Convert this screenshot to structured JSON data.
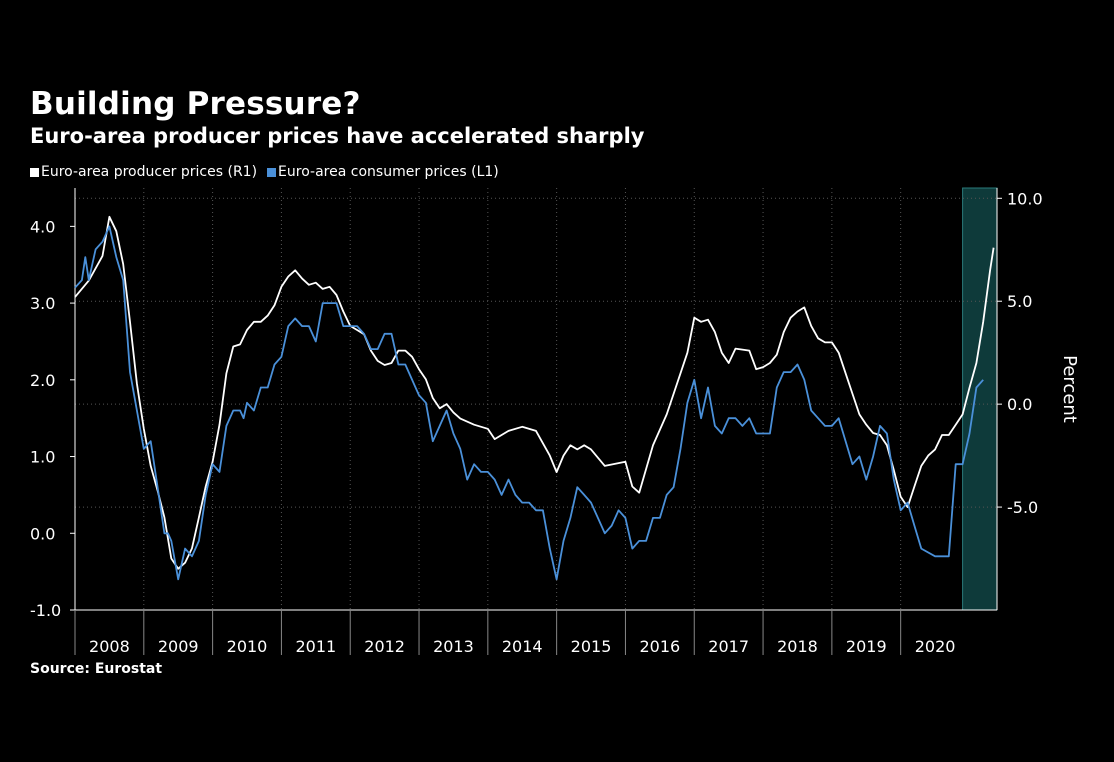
{
  "chart_data": {
    "type": "line",
    "title": "Building Pressure?",
    "subtitle": "Euro-area producer prices have accelerated sharply",
    "source": "Source: Eurostat",
    "right_axis_label": "Percent",
    "legend_position": "top-left",
    "left_axis": {
      "range": [
        -1.0,
        4.5
      ],
      "ticks": [
        "4.0",
        "3.0",
        "2.0",
        "1.0",
        "0.0",
        "-1.0"
      ]
    },
    "right_axis": {
      "range": [
        -10.0,
        10.5
      ],
      "ticks": [
        "10.0",
        "5.0",
        "0.0",
        "-5.0"
      ]
    },
    "x_range": [
      2008.0,
      2021.4
    ],
    "x_categories": [
      "2008",
      "2009",
      "2010",
      "2011",
      "2012",
      "2013",
      "2014",
      "2015",
      "2016",
      "2017",
      "2018",
      "2019",
      "2020"
    ],
    "highlight_region": [
      2020.9,
      2021.4
    ],
    "series": [
      {
        "name": "Euro-area producer prices (R1)",
        "axis": "right",
        "color": "#ffffff",
        "points": [
          [
            2008.0,
            5.2
          ],
          [
            2008.2,
            6.0
          ],
          [
            2008.4,
            7.2
          ],
          [
            2008.5,
            9.1
          ],
          [
            2008.6,
            8.4
          ],
          [
            2008.7,
            6.8
          ],
          [
            2008.8,
            4.0
          ],
          [
            2008.9,
            1.0
          ],
          [
            2009.0,
            -1.2
          ],
          [
            2009.1,
            -3.0
          ],
          [
            2009.2,
            -4.2
          ],
          [
            2009.3,
            -5.5
          ],
          [
            2009.4,
            -7.5
          ],
          [
            2009.5,
            -8.0
          ],
          [
            2009.6,
            -7.7
          ],
          [
            2009.7,
            -7.0
          ],
          [
            2009.8,
            -5.5
          ],
          [
            2009.9,
            -4.0
          ],
          [
            2010.0,
            -2.8
          ],
          [
            2010.1,
            -1.0
          ],
          [
            2010.2,
            1.5
          ],
          [
            2010.3,
            2.8
          ],
          [
            2010.4,
            2.9
          ],
          [
            2010.5,
            3.6
          ],
          [
            2010.6,
            4.0
          ],
          [
            2010.7,
            4.0
          ],
          [
            2010.8,
            4.3
          ],
          [
            2010.9,
            4.8
          ],
          [
            2011.0,
            5.7
          ],
          [
            2011.1,
            6.2
          ],
          [
            2011.2,
            6.5
          ],
          [
            2011.3,
            6.1
          ],
          [
            2011.4,
            5.8
          ],
          [
            2011.5,
            5.9
          ],
          [
            2011.6,
            5.6
          ],
          [
            2011.7,
            5.7
          ],
          [
            2011.8,
            5.3
          ],
          [
            2011.9,
            4.5
          ],
          [
            2012.0,
            3.8
          ],
          [
            2012.1,
            3.6
          ],
          [
            2012.2,
            3.4
          ],
          [
            2012.3,
            2.6
          ],
          [
            2012.4,
            2.1
          ],
          [
            2012.5,
            1.9
          ],
          [
            2012.6,
            2.0
          ],
          [
            2012.7,
            2.6
          ],
          [
            2012.8,
            2.6
          ],
          [
            2012.9,
            2.3
          ],
          [
            2013.0,
            1.7
          ],
          [
            2013.1,
            1.2
          ],
          [
            2013.2,
            0.3
          ],
          [
            2013.3,
            -0.2
          ],
          [
            2013.4,
            0.0
          ],
          [
            2013.5,
            -0.4
          ],
          [
            2013.6,
            -0.7
          ],
          [
            2013.8,
            -1.0
          ],
          [
            2014.0,
            -1.2
          ],
          [
            2014.1,
            -1.7
          ],
          [
            2014.3,
            -1.3
          ],
          [
            2014.5,
            -1.1
          ],
          [
            2014.7,
            -1.3
          ],
          [
            2014.9,
            -2.5
          ],
          [
            2015.0,
            -3.3
          ],
          [
            2015.1,
            -2.5
          ],
          [
            2015.2,
            -2.0
          ],
          [
            2015.3,
            -2.2
          ],
          [
            2015.4,
            -2.0
          ],
          [
            2015.5,
            -2.2
          ],
          [
            2015.7,
            -3.0
          ],
          [
            2016.0,
            -2.8
          ],
          [
            2016.1,
            -4.0
          ],
          [
            2016.2,
            -4.3
          ],
          [
            2016.4,
            -2.0
          ],
          [
            2016.6,
            -0.5
          ],
          [
            2016.8,
            1.5
          ],
          [
            2016.9,
            2.5
          ],
          [
            2017.0,
            4.2
          ],
          [
            2017.1,
            4.0
          ],
          [
            2017.2,
            4.1
          ],
          [
            2017.3,
            3.5
          ],
          [
            2017.4,
            2.5
          ],
          [
            2017.5,
            2.0
          ],
          [
            2017.6,
            2.7
          ],
          [
            2017.8,
            2.6
          ],
          [
            2017.9,
            1.7
          ],
          [
            2018.0,
            1.8
          ],
          [
            2018.1,
            2.0
          ],
          [
            2018.2,
            2.4
          ],
          [
            2018.3,
            3.5
          ],
          [
            2018.4,
            4.2
          ],
          [
            2018.5,
            4.5
          ],
          [
            2018.6,
            4.7
          ],
          [
            2018.7,
            3.8
          ],
          [
            2018.8,
            3.2
          ],
          [
            2018.9,
            3.0
          ],
          [
            2019.0,
            3.0
          ],
          [
            2019.1,
            2.5
          ],
          [
            2019.2,
            1.5
          ],
          [
            2019.3,
            0.5
          ],
          [
            2019.4,
            -0.5
          ],
          [
            2019.5,
            -1.0
          ],
          [
            2019.6,
            -1.4
          ],
          [
            2019.7,
            -1.5
          ],
          [
            2019.8,
            -2.0
          ],
          [
            2019.9,
            -3.2
          ],
          [
            2020.0,
            -4.5
          ],
          [
            2020.1,
            -5.0
          ],
          [
            2020.2,
            -4.0
          ],
          [
            2020.3,
            -3.0
          ],
          [
            2020.4,
            -2.5
          ],
          [
            2020.5,
            -2.2
          ],
          [
            2020.6,
            -1.5
          ],
          [
            2020.7,
            -1.5
          ],
          [
            2020.8,
            -1.0
          ],
          [
            2020.9,
            -0.5
          ],
          [
            2021.0,
            0.8
          ],
          [
            2021.1,
            2.0
          ],
          [
            2021.2,
            4.0
          ],
          [
            2021.3,
            6.5
          ],
          [
            2021.35,
            7.6
          ]
        ]
      },
      {
        "name": "Euro-area consumer prices  (L1)",
        "axis": "left",
        "color": "#4a90d9",
        "points": [
          [
            2008.0,
            3.2
          ],
          [
            2008.1,
            3.3
          ],
          [
            2008.15,
            3.6
          ],
          [
            2008.2,
            3.3
          ],
          [
            2008.3,
            3.7
          ],
          [
            2008.4,
            3.8
          ],
          [
            2008.5,
            4.0
          ],
          [
            2008.6,
            3.6
          ],
          [
            2008.7,
            3.3
          ],
          [
            2008.8,
            2.1
          ],
          [
            2008.9,
            1.6
          ],
          [
            2009.0,
            1.1
          ],
          [
            2009.1,
            1.2
          ],
          [
            2009.2,
            0.6
          ],
          [
            2009.3,
            0.0
          ],
          [
            2009.35,
            0.0
          ],
          [
            2009.4,
            -0.1
          ],
          [
            2009.5,
            -0.6
          ],
          [
            2009.6,
            -0.2
          ],
          [
            2009.7,
            -0.3
          ],
          [
            2009.8,
            -0.1
          ],
          [
            2009.9,
            0.5
          ],
          [
            2010.0,
            0.9
          ],
          [
            2010.1,
            0.8
          ],
          [
            2010.2,
            1.4
          ],
          [
            2010.3,
            1.6
          ],
          [
            2010.4,
            1.6
          ],
          [
            2010.45,
            1.5
          ],
          [
            2010.5,
            1.7
          ],
          [
            2010.6,
            1.6
          ],
          [
            2010.7,
            1.9
          ],
          [
            2010.8,
            1.9
          ],
          [
            2010.9,
            2.2
          ],
          [
            2011.0,
            2.3
          ],
          [
            2011.1,
            2.7
          ],
          [
            2011.2,
            2.8
          ],
          [
            2011.3,
            2.7
          ],
          [
            2011.4,
            2.7
          ],
          [
            2011.5,
            2.5
          ],
          [
            2011.6,
            3.0
          ],
          [
            2011.7,
            3.0
          ],
          [
            2011.8,
            3.0
          ],
          [
            2011.9,
            2.7
          ],
          [
            2012.0,
            2.7
          ],
          [
            2012.1,
            2.7
          ],
          [
            2012.2,
            2.6
          ],
          [
            2012.3,
            2.4
          ],
          [
            2012.4,
            2.4
          ],
          [
            2012.5,
            2.6
          ],
          [
            2012.6,
            2.6
          ],
          [
            2012.7,
            2.2
          ],
          [
            2012.8,
            2.2
          ],
          [
            2012.9,
            2.0
          ],
          [
            2013.0,
            1.8
          ],
          [
            2013.1,
            1.7
          ],
          [
            2013.2,
            1.2
          ],
          [
            2013.3,
            1.4
          ],
          [
            2013.4,
            1.6
          ],
          [
            2013.5,
            1.3
          ],
          [
            2013.6,
            1.1
          ],
          [
            2013.7,
            0.7
          ],
          [
            2013.8,
            0.9
          ],
          [
            2013.9,
            0.8
          ],
          [
            2014.0,
            0.8
          ],
          [
            2014.1,
            0.7
          ],
          [
            2014.2,
            0.5
          ],
          [
            2014.3,
            0.7
          ],
          [
            2014.4,
            0.5
          ],
          [
            2014.5,
            0.4
          ],
          [
            2014.6,
            0.4
          ],
          [
            2014.7,
            0.3
          ],
          [
            2014.8,
            0.3
          ],
          [
            2014.9,
            -0.2
          ],
          [
            2015.0,
            -0.6
          ],
          [
            2015.1,
            -0.1
          ],
          [
            2015.2,
            0.2
          ],
          [
            2015.3,
            0.6
          ],
          [
            2015.4,
            0.5
          ],
          [
            2015.5,
            0.4
          ],
          [
            2015.6,
            0.2
          ],
          [
            2015.7,
            0.0
          ],
          [
            2015.8,
            0.1
          ],
          [
            2015.9,
            0.3
          ],
          [
            2016.0,
            0.2
          ],
          [
            2016.1,
            -0.2
          ],
          [
            2016.2,
            -0.1
          ],
          [
            2016.3,
            -0.1
          ],
          [
            2016.4,
            0.2
          ],
          [
            2016.5,
            0.2
          ],
          [
            2016.6,
            0.5
          ],
          [
            2016.7,
            0.6
          ],
          [
            2016.8,
            1.1
          ],
          [
            2016.9,
            1.7
          ],
          [
            2017.0,
            2.0
          ],
          [
            2017.1,
            1.5
          ],
          [
            2017.2,
            1.9
          ],
          [
            2017.3,
            1.4
          ],
          [
            2017.4,
            1.3
          ],
          [
            2017.5,
            1.5
          ],
          [
            2017.6,
            1.5
          ],
          [
            2017.7,
            1.4
          ],
          [
            2017.8,
            1.5
          ],
          [
            2017.9,
            1.3
          ],
          [
            2018.0,
            1.3
          ],
          [
            2018.1,
            1.3
          ],
          [
            2018.2,
            1.9
          ],
          [
            2018.3,
            2.1
          ],
          [
            2018.4,
            2.1
          ],
          [
            2018.5,
            2.2
          ],
          [
            2018.6,
            2.0
          ],
          [
            2018.7,
            1.6
          ],
          [
            2018.8,
            1.5
          ],
          [
            2018.9,
            1.4
          ],
          [
            2019.0,
            1.4
          ],
          [
            2019.1,
            1.5
          ],
          [
            2019.2,
            1.2
          ],
          [
            2019.3,
            0.9
          ],
          [
            2019.4,
            1.0
          ],
          [
            2019.5,
            0.7
          ],
          [
            2019.6,
            1.0
          ],
          [
            2019.7,
            1.4
          ],
          [
            2019.8,
            1.3
          ],
          [
            2019.9,
            0.7
          ],
          [
            2020.0,
            0.3
          ],
          [
            2020.1,
            0.4
          ],
          [
            2020.2,
            0.1
          ],
          [
            2020.3,
            -0.2
          ],
          [
            2020.5,
            -0.3
          ],
          [
            2020.6,
            -0.3
          ],
          [
            2020.7,
            -0.3
          ],
          [
            2020.8,
            0.9
          ],
          [
            2020.9,
            0.9
          ],
          [
            2021.0,
            1.3
          ],
          [
            2021.1,
            1.9
          ],
          [
            2021.2,
            2.0
          ]
        ]
      }
    ]
  }
}
